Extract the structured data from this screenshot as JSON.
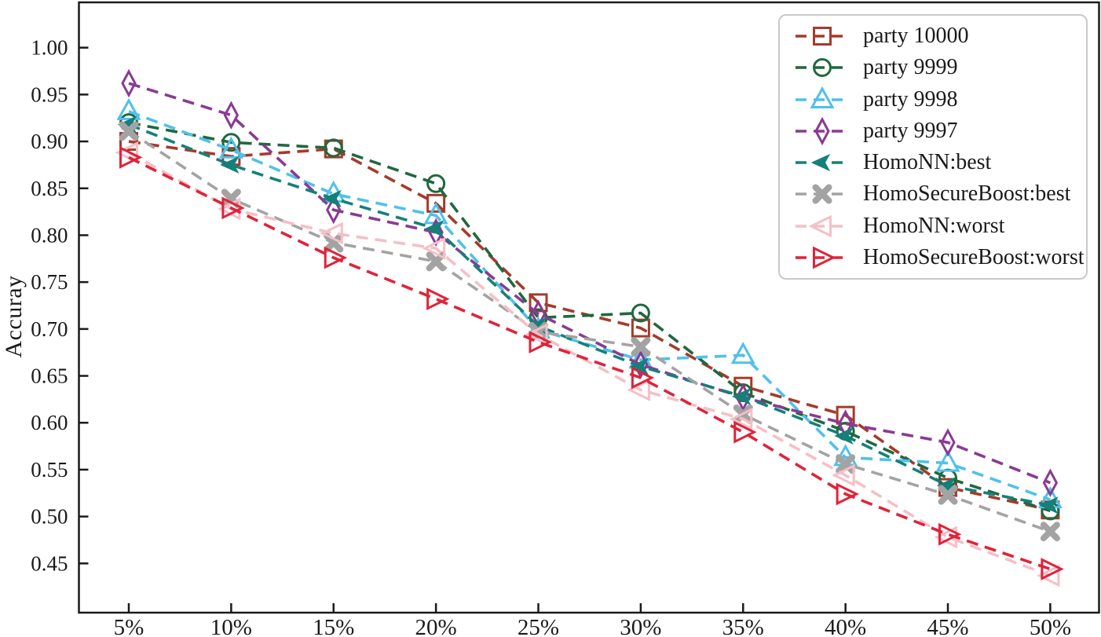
{
  "figure": {
    "background": "#ffffff",
    "axis_color": "#1a1a1a",
    "text_color": "#1a1a1a",
    "legend_border_color": "#c9c9c9"
  },
  "chart_data": {
    "type": "line",
    "title": "",
    "xlabel": "",
    "ylabel": "Accuray",
    "grid": false,
    "line_style": "dashed",
    "legend_position": "upper right",
    "categories": [
      "5%",
      "10%",
      "15%",
      "20%",
      "25%",
      "30%",
      "35%",
      "40%",
      "45%",
      "50%"
    ],
    "y_ticks": [
      "1.00",
      "0.95",
      "0.90",
      "0.85",
      "0.80",
      "0.75",
      "0.70",
      "0.65",
      "0.60",
      "0.55",
      "0.50",
      "0.45"
    ],
    "ylim": [
      0.398,
      1.048
    ],
    "series": [
      {
        "name": "party 10000",
        "color": "#a63a2b",
        "marker": "square",
        "values": [
          0.9,
          0.884,
          0.892,
          0.834,
          0.728,
          0.701,
          0.639,
          0.608,
          0.531,
          0.507
        ]
      },
      {
        "name": "party 9999",
        "color": "#20683f",
        "marker": "circle",
        "values": [
          0.92,
          0.899,
          0.893,
          0.855,
          0.712,
          0.717,
          0.632,
          0.591,
          0.541,
          0.506
        ]
      },
      {
        "name": "party 9998",
        "color": "#4fc1ea",
        "marker": "triangle-up",
        "values": [
          0.932,
          0.891,
          0.844,
          0.821,
          0.699,
          0.667,
          0.672,
          0.563,
          0.557,
          0.518
        ]
      },
      {
        "name": "party 9997",
        "color": "#8a3a94",
        "marker": "thin-diamond",
        "values": [
          0.962,
          0.928,
          0.827,
          0.803,
          0.716,
          0.662,
          0.627,
          0.599,
          0.579,
          0.536
        ]
      },
      {
        "name": "HomoNN:best",
        "color": "#15807a",
        "marker": "caret-left",
        "values": [
          0.918,
          0.875,
          0.839,
          0.807,
          0.703,
          0.66,
          0.628,
          0.586,
          0.533,
          0.512
        ]
      },
      {
        "name": "HomoSecureBoost:best",
        "color": "#a3a3a3",
        "marker": "x-filled",
        "values": [
          0.911,
          0.839,
          0.792,
          0.772,
          0.697,
          0.681,
          0.609,
          0.556,
          0.523,
          0.484
        ]
      },
      {
        "name": "HomoNN:worst",
        "color": "#f5bfc6",
        "marker": "triangle-left",
        "values": [
          0.888,
          0.828,
          0.802,
          0.786,
          0.694,
          0.635,
          0.604,
          0.544,
          0.478,
          0.437
        ]
      },
      {
        "name": "HomoSecureBoost:worst",
        "color": "#e02339",
        "marker": "triangle-right",
        "values": [
          0.883,
          0.829,
          0.776,
          0.732,
          0.686,
          0.648,
          0.59,
          0.524,
          0.481,
          0.444
        ]
      }
    ]
  }
}
